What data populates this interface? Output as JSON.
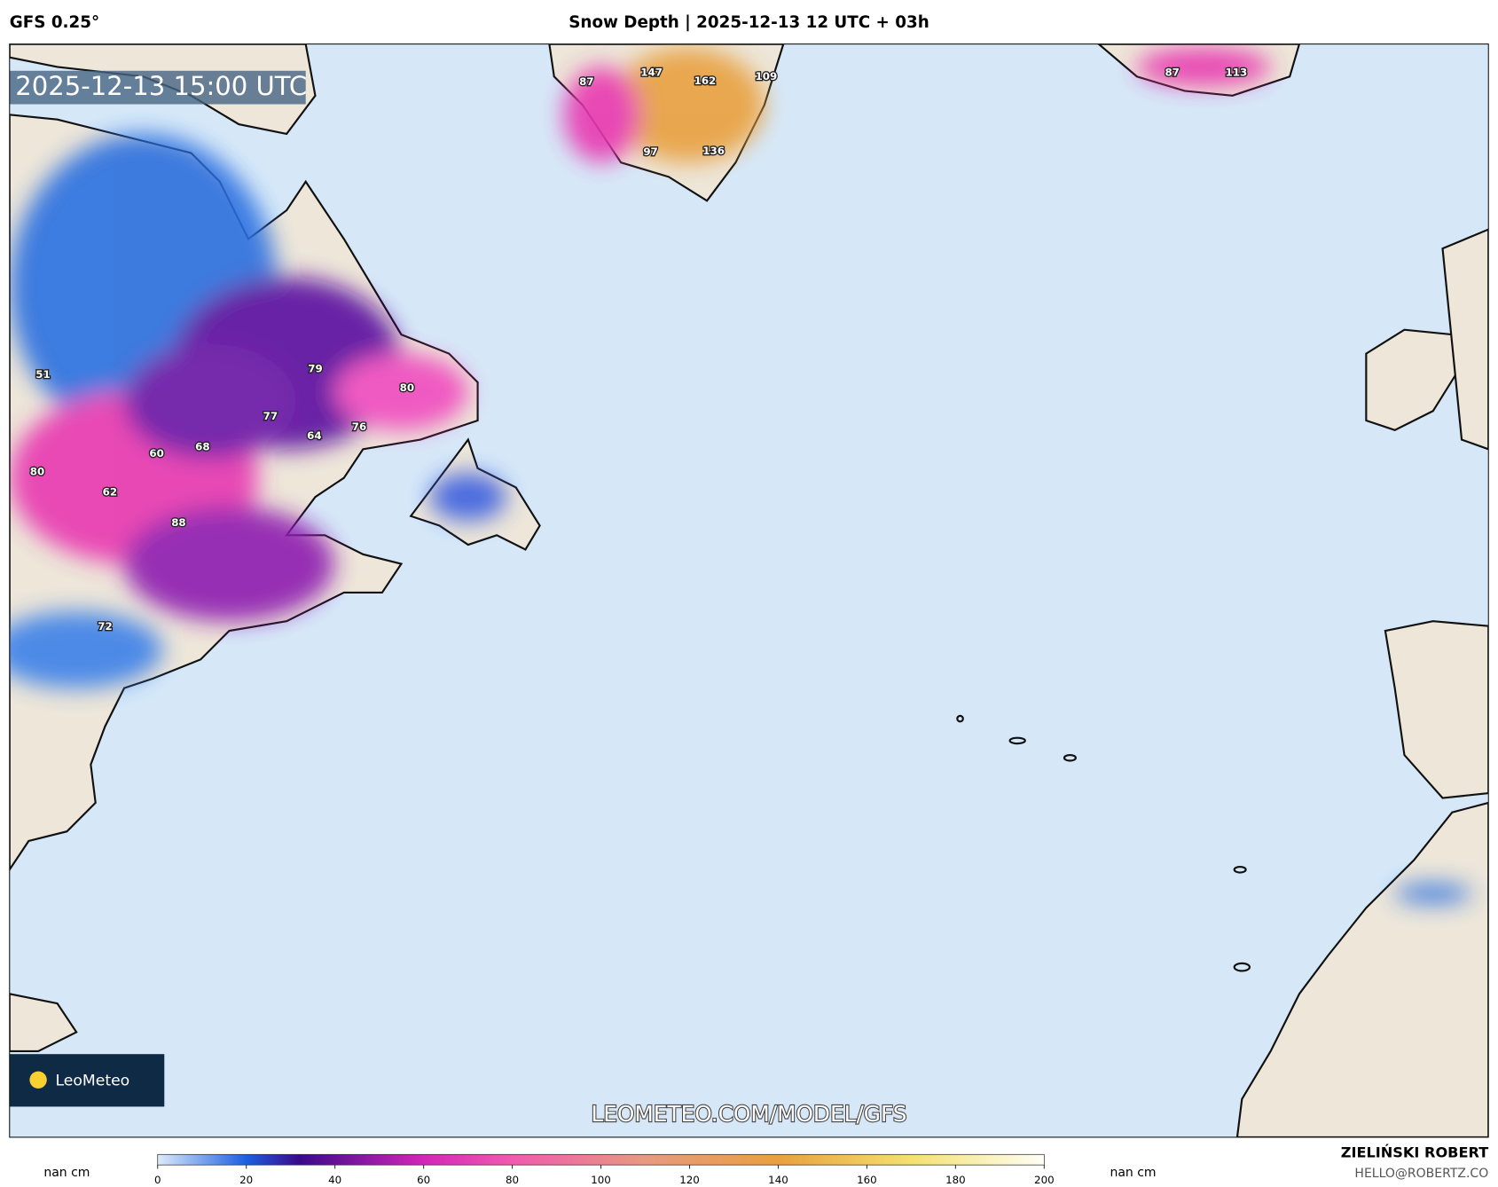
{
  "header": {
    "model": "GFS 0.25°",
    "title": "Snow Depth | 2025-12-13 12 UTC + 03h"
  },
  "map": {
    "timestamp": "2025-12-13 15:00 UTC",
    "watermark": "LEOMETEO.COM/MODEL/GFS",
    "logo": "LeoMeteo",
    "labels": [
      51,
      79,
      80,
      77,
      76,
      64,
      60,
      68,
      80,
      62,
      88,
      72,
      147,
      162,
      109,
      87,
      97,
      136,
      87,
      113
    ]
  },
  "colorbar": {
    "lim": [
      0,
      200
    ],
    "ticks": [
      0,
      20,
      40,
      60,
      80,
      100,
      120,
      140,
      160,
      180,
      200
    ],
    "unit_left": "nan cm",
    "unit_right": "nan cm"
  },
  "footer": {
    "author": "ZIELIŃSKI ROBERT",
    "email": "HELLO@ROBERTZ.CO"
  }
}
